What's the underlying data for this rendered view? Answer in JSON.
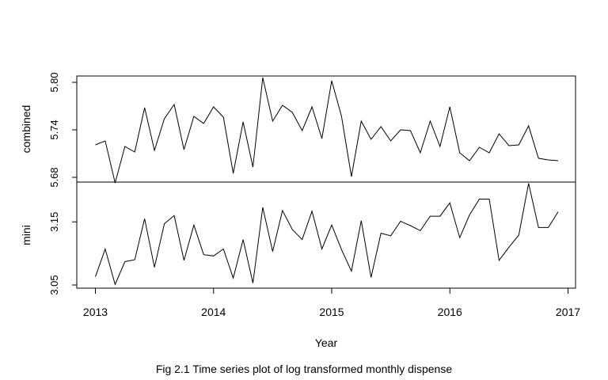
{
  "caption": "Fig 2.1 Time series plot of log transformed monthly dispense",
  "chart_data": {
    "type": "line",
    "xlabel": "Year",
    "x_ticks": [
      "2013",
      "2014",
      "2015",
      "2016",
      "2017"
    ],
    "x_range": [
      2013,
      2017
    ],
    "x_start": 2013.0,
    "x_step": 0.08333,
    "grid": false,
    "panels": [
      {
        "name": "combined",
        "ylabel": "combined",
        "ylim": [
          5.674,
          5.808
        ],
        "y_ticks": [
          "5.68",
          "5.74",
          "5.80"
        ],
        "y_tick_values": [
          5.68,
          5.74,
          5.8
        ],
        "values": [
          5.721,
          5.726,
          5.673,
          5.719,
          5.712,
          5.768,
          5.714,
          5.754,
          5.772,
          5.715,
          5.757,
          5.748,
          5.769,
          5.756,
          5.685,
          5.75,
          5.693,
          5.806,
          5.751,
          5.771,
          5.762,
          5.739,
          5.769,
          5.729,
          5.802,
          5.757,
          5.681,
          5.751,
          5.728,
          5.744,
          5.726,
          5.74,
          5.739,
          5.711,
          5.751,
          5.719,
          5.769,
          5.711,
          5.701,
          5.718,
          5.711,
          5.735,
          5.72,
          5.721,
          5.745,
          5.704,
          5.702,
          5.701
        ]
      },
      {
        "name": "mini",
        "ylabel": "mini",
        "ylim": [
          3.045,
          3.213
        ],
        "y_ticks": [
          "3.05",
          "3.15"
        ],
        "y_tick_values": [
          3.05,
          3.15
        ],
        "values": [
          3.063,
          3.107,
          3.051,
          3.087,
          3.09,
          3.155,
          3.078,
          3.147,
          3.16,
          3.089,
          3.145,
          3.098,
          3.096,
          3.107,
          3.061,
          3.122,
          3.053,
          3.173,
          3.103,
          3.168,
          3.138,
          3.122,
          3.167,
          3.107,
          3.145,
          3.106,
          3.072,
          3.152,
          3.062,
          3.132,
          3.128,
          3.151,
          3.144,
          3.136,
          3.159,
          3.159,
          3.18,
          3.125,
          3.161,
          3.186,
          3.186,
          3.089,
          3.11,
          3.129,
          3.211,
          3.141,
          3.141,
          3.166
        ]
      }
    ]
  }
}
